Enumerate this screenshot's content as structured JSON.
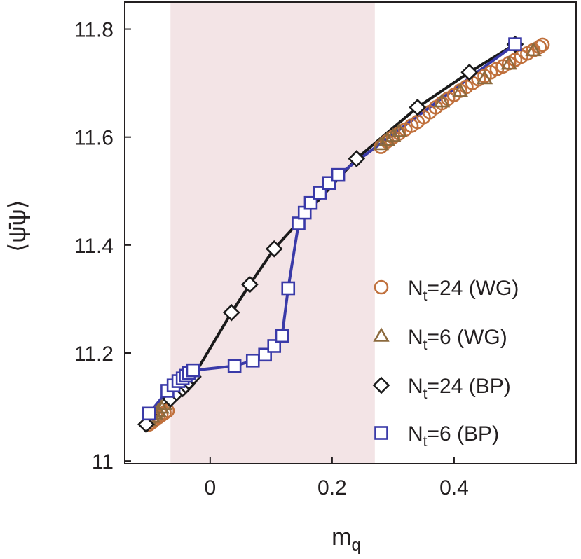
{
  "chart_data": {
    "type": "scatter",
    "title": "",
    "xlabel": "m",
    "xlabel_sub": "q",
    "ylabel": "⟨ψ̄ψ⟩",
    "xlim": [
      -0.14,
      0.6
    ],
    "ylim": [
      10.995,
      11.85
    ],
    "xticks": [
      0,
      0.2,
      0.4
    ],
    "xtick_labels": [
      "0",
      "0.2",
      "0.4"
    ],
    "yticks": [
      11,
      11.2,
      11.4,
      11.6,
      11.8
    ],
    "ytick_labels": [
      "11",
      "11.2",
      "11.4",
      "11.6",
      "11.8"
    ],
    "grid": false,
    "legend_position": "lower-right",
    "shaded_region": {
      "x": [
        -0.065,
        0.27
      ],
      "color": "#f3e4e6"
    },
    "series": [
      {
        "name_main": "N",
        "name_sub": "t",
        "name_rest": "=24 (WG)",
        "marker": "circle",
        "color": "#c0703c",
        "line": false,
        "x": [
          -0.1,
          -0.095,
          -0.09,
          -0.085,
          -0.08,
          -0.075,
          -0.07,
          0.28,
          0.29,
          0.3,
          0.31,
          0.32,
          0.33,
          0.34,
          0.35,
          0.36,
          0.37,
          0.38,
          0.39,
          0.4,
          0.41,
          0.42,
          0.43,
          0.44,
          0.45,
          0.46,
          0.47,
          0.48,
          0.49,
          0.5,
          0.51,
          0.52,
          0.53,
          0.54,
          0.545
        ],
        "y": [
          11.068,
          11.072,
          11.077,
          11.081,
          11.085,
          11.089,
          11.093,
          11.582,
          11.592,
          11.6,
          11.607,
          11.614,
          11.621,
          11.628,
          11.637,
          11.646,
          11.655,
          11.663,
          11.671,
          11.678,
          11.686,
          11.693,
          11.7,
          11.707,
          11.713,
          11.72,
          11.726,
          11.731,
          11.737,
          11.743,
          11.749,
          11.755,
          11.761,
          11.767,
          11.771
        ]
      },
      {
        "name_main": "N",
        "name_sub": "t",
        "name_rest": "=6 (WG)",
        "marker": "triangle",
        "color": "#8c6a3e",
        "line": false,
        "x": [
          -0.1,
          -0.095,
          -0.09,
          -0.085,
          -0.08,
          -0.075,
          0.28,
          0.29,
          0.3,
          0.31,
          0.38,
          0.41,
          0.45,
          0.49,
          0.53
        ],
        "y": [
          11.075,
          11.081,
          11.087,
          11.092,
          11.098,
          11.104,
          11.586,
          11.594,
          11.601,
          11.61,
          11.665,
          11.684,
          11.708,
          11.735,
          11.76
        ]
      },
      {
        "name_main": "N",
        "name_sub": "t",
        "name_rest": "=24 (BP)",
        "marker": "diamond",
        "color": "#1a1a1a",
        "line": true,
        "line_color": "#1a1a1a",
        "x": [
          -0.105,
          -0.065,
          -0.055,
          -0.045,
          -0.04,
          -0.035,
          -0.028,
          0.035,
          0.065,
          0.105,
          0.24,
          0.34,
          0.425,
          0.5
        ],
        "y": [
          11.068,
          11.115,
          11.126,
          11.134,
          11.14,
          11.147,
          11.156,
          11.275,
          11.327,
          11.393,
          11.56,
          11.655,
          11.72,
          11.772
        ]
      },
      {
        "name_main": "N",
        "name_sub": "t",
        "name_rest": "=6 (BP)",
        "marker": "square",
        "color": "#3a3aa8",
        "line": true,
        "line_color": "#3a3aa8",
        "x": [
          -0.1,
          -0.07,
          -0.06,
          -0.052,
          -0.045,
          -0.04,
          -0.035,
          -0.028,
          0.04,
          0.07,
          0.09,
          0.105,
          0.118,
          0.128,
          0.145,
          0.155,
          0.165,
          0.18,
          0.195,
          0.21,
          0.5
        ],
        "y": [
          11.088,
          11.13,
          11.14,
          11.148,
          11.153,
          11.158,
          11.163,
          11.168,
          11.176,
          11.186,
          11.197,
          11.213,
          11.232,
          11.32,
          11.44,
          11.46,
          11.478,
          11.497,
          11.515,
          11.53,
          11.772
        ]
      }
    ]
  }
}
